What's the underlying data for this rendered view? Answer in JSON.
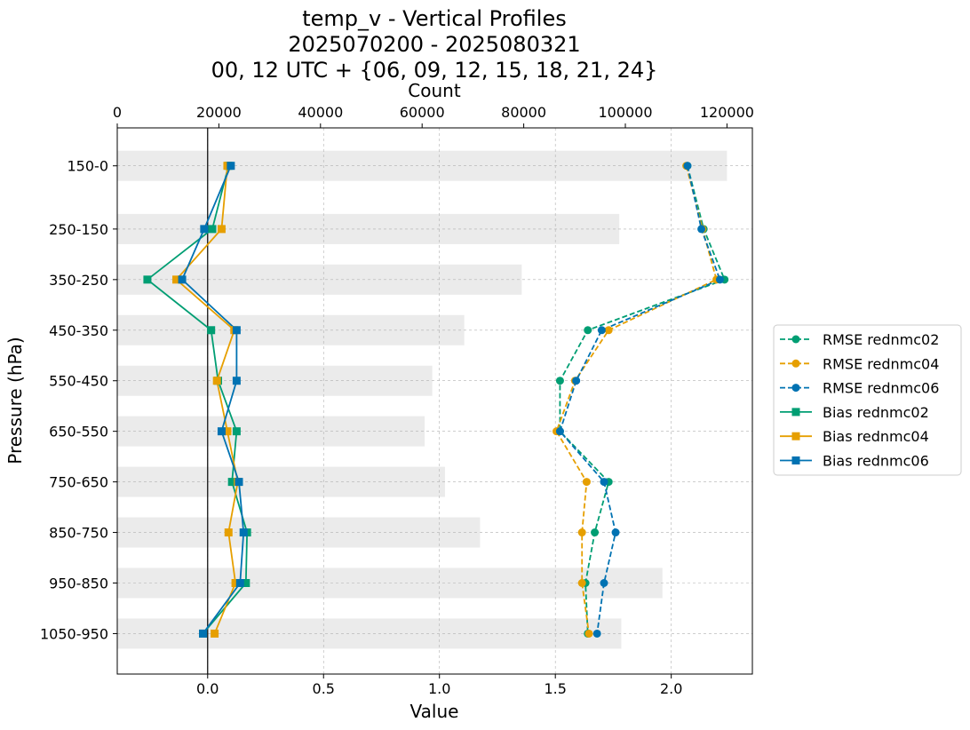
{
  "chart_data": {
    "type": "line",
    "title_lines": [
      "temp_v - Vertical Profiles",
      "2025070200 - 2025080321",
      "00, 12 UTC + {06, 09, 12, 15, 18, 21, 24}"
    ],
    "xlabel": "Value",
    "ylabel": "Pressure (hPa)",
    "top_xlabel": "Count",
    "xlim": [
      -0.39,
      2.35
    ],
    "xticks": [
      0.0,
      0.5,
      1.0,
      1.5,
      2.0
    ],
    "xtick_labels": [
      "0.0",
      "0.5",
      "1.0",
      "1.5",
      "2.0"
    ],
    "count_ticks": [
      0,
      20000,
      40000,
      60000,
      80000,
      100000,
      120000
    ],
    "count_tick_labels": [
      "0",
      "20000",
      "40000",
      "60000",
      "80000",
      "100000",
      "120000"
    ],
    "levels": [
      "150-0",
      "250-150",
      "350-250",
      "450-350",
      "550-450",
      "650-550",
      "750-650",
      "850-750",
      "950-850",
      "1050-950"
    ],
    "level_positions": [
      0.75,
      2,
      3,
      4,
      5,
      6,
      7,
      8,
      9,
      10
    ],
    "ylim": [
      0.0,
      10.8
    ],
    "counts": [
      120000,
      98800,
      79600,
      68300,
      62000,
      60500,
      64500,
      71400,
      107300,
      99200
    ],
    "grid": true,
    "legend_position": "right",
    "zero_line": true,
    "series": [
      {
        "name": "RMSE rednmc02",
        "kind": "rmse",
        "color": "#009E73",
        "values": [
          2.07,
          2.14,
          2.23,
          1.64,
          1.52,
          1.52,
          1.73,
          1.67,
          1.63,
          1.64
        ]
      },
      {
        "name": "RMSE rednmc04",
        "kind": "rmse",
        "color": "#E69F00",
        "values": [
          2.065,
          2.135,
          2.195,
          1.73,
          1.585,
          1.505,
          1.635,
          1.615,
          1.615,
          1.645
        ]
      },
      {
        "name": "RMSE rednmc06",
        "kind": "rmse",
        "color": "#0072B2",
        "values": [
          2.07,
          2.13,
          2.21,
          1.7,
          1.59,
          1.52,
          1.71,
          1.76,
          1.71,
          1.68
        ]
      },
      {
        "name": "Bias rednmc02",
        "kind": "bias",
        "color": "#009E73",
        "values": [
          0.09,
          0.02,
          -0.26,
          0.015,
          0.045,
          0.125,
          0.105,
          0.17,
          0.165,
          -0.02
        ]
      },
      {
        "name": "Bias rednmc04",
        "kind": "bias",
        "color": "#E69F00",
        "values": [
          0.085,
          0.06,
          -0.135,
          0.115,
          0.04,
          0.085,
          0.13,
          0.09,
          0.12,
          0.03
        ]
      },
      {
        "name": "Bias rednmc06",
        "kind": "bias",
        "color": "#0072B2",
        "values": [
          0.1,
          -0.015,
          -0.11,
          0.125,
          0.125,
          0.06,
          0.135,
          0.155,
          0.14,
          -0.02
        ]
      }
    ]
  }
}
